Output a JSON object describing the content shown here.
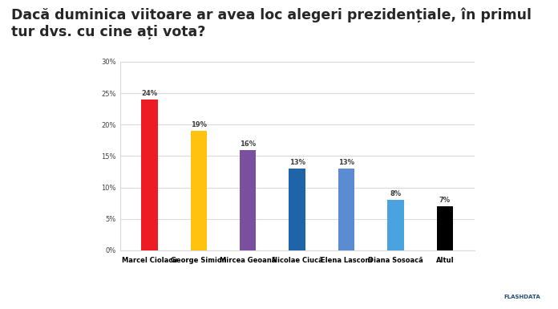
{
  "chart_data": {
    "type": "bar",
    "title": "Dacă duminica viitoare ar avea loc alegeri prezidențiale, în primul tur dvs. cu cine ați vota?",
    "categories": [
      "Marcel Ciolacu",
      "George Simion",
      "Mircea Geoană",
      "Nicolae Ciucă",
      "Elena Lasconi",
      "Diana Sosoacă",
      "Altul"
    ],
    "values": [
      24,
      19,
      16,
      13,
      13,
      8,
      7
    ],
    "value_labels": [
      "24%",
      "19%",
      "16%",
      "13%",
      "13%",
      "8%",
      "7%"
    ],
    "colors": [
      "#ed1c24",
      "#ffc20e",
      "#7b4fa0",
      "#1f64a8",
      "#5b8bd0",
      "#4aa3df",
      "#000000"
    ],
    "ylim": [
      0,
      30
    ],
    "yticks": [
      {
        "value": 0,
        "label": "0%"
      },
      {
        "value": 5,
        "label": "5%"
      },
      {
        "value": 10,
        "label": "10%"
      },
      {
        "value": 15,
        "label": "15%"
      },
      {
        "value": 20,
        "label": "20%"
      },
      {
        "value": 25,
        "label": "25%"
      },
      {
        "value": 30,
        "label": "30%"
      }
    ],
    "grid": true,
    "data_labels": true,
    "source": "FLASHDATA"
  }
}
